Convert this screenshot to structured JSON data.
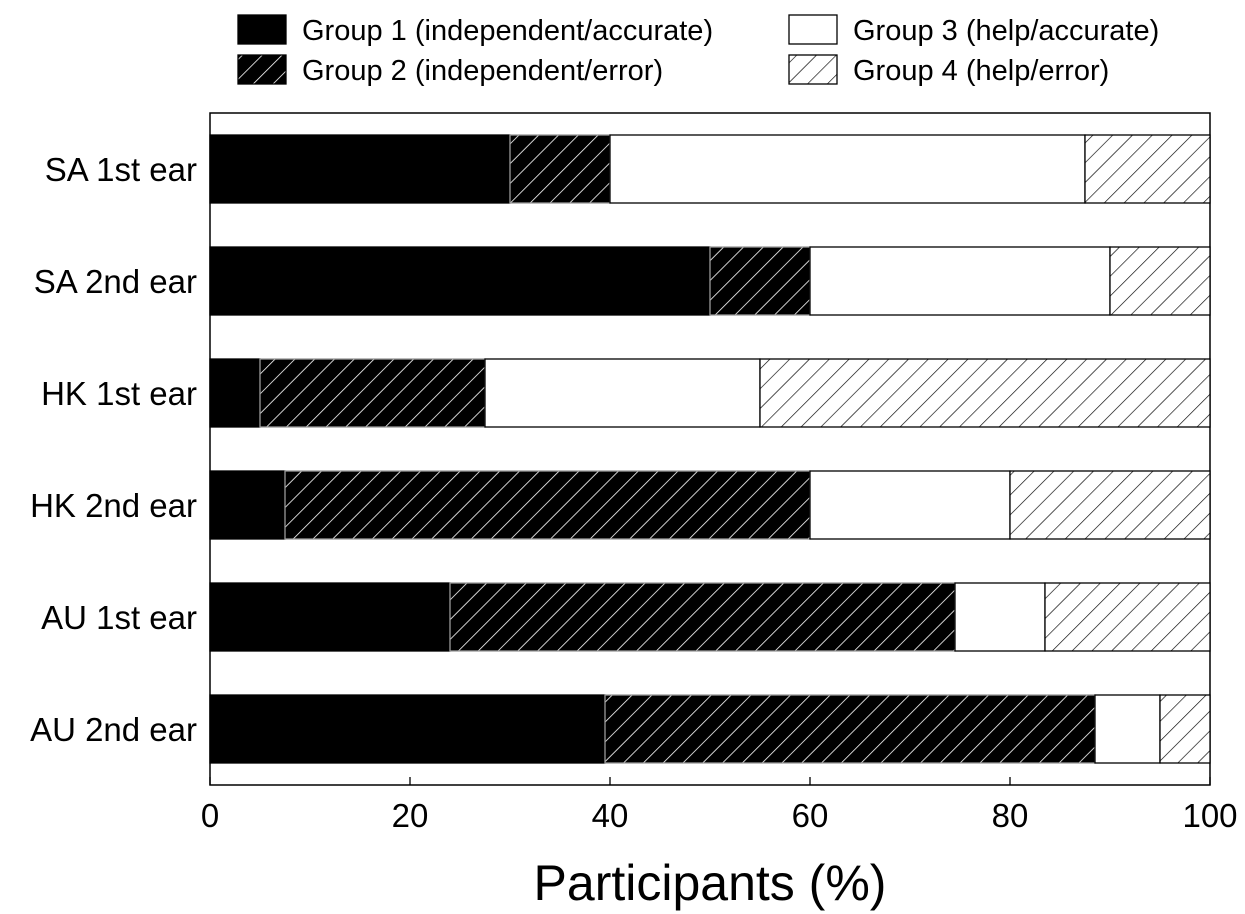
{
  "chart_data": {
    "type": "bar",
    "orientation": "horizontal",
    "stacked": true,
    "title": "",
    "xlabel": "Participants (%)",
    "ylabel": "",
    "xlim": [
      0,
      100
    ],
    "xticks": [
      "0",
      "20",
      "40",
      "60",
      "80",
      "100"
    ],
    "categories": [
      "SA 1st ear",
      "SA 2nd ear",
      "HK 1st ear",
      "HK 2nd ear",
      "AU 1st ear",
      "AU 2nd ear"
    ],
    "series": [
      {
        "name": "Group 1 (independent/accurate)",
        "fill": "solid-black",
        "values": [
          30,
          50,
          5,
          7.5,
          24,
          39.5
        ]
      },
      {
        "name": "Group 2 (independent/error)",
        "fill": "hatch-on-black",
        "values": [
          10,
          10,
          22.5,
          52.5,
          50.5,
          49
        ]
      },
      {
        "name": "Group 3 (help/accurate)",
        "fill": "solid-white",
        "values": [
          47.5,
          30,
          27.5,
          20,
          9,
          6.5
        ]
      },
      {
        "name": "Group 4 (help/error)",
        "fill": "hatch-on-white",
        "values": [
          12.5,
          10,
          45,
          20,
          16.5,
          5
        ]
      }
    ],
    "legend": {
      "placement": "top",
      "columns": 2
    },
    "grid": false
  }
}
